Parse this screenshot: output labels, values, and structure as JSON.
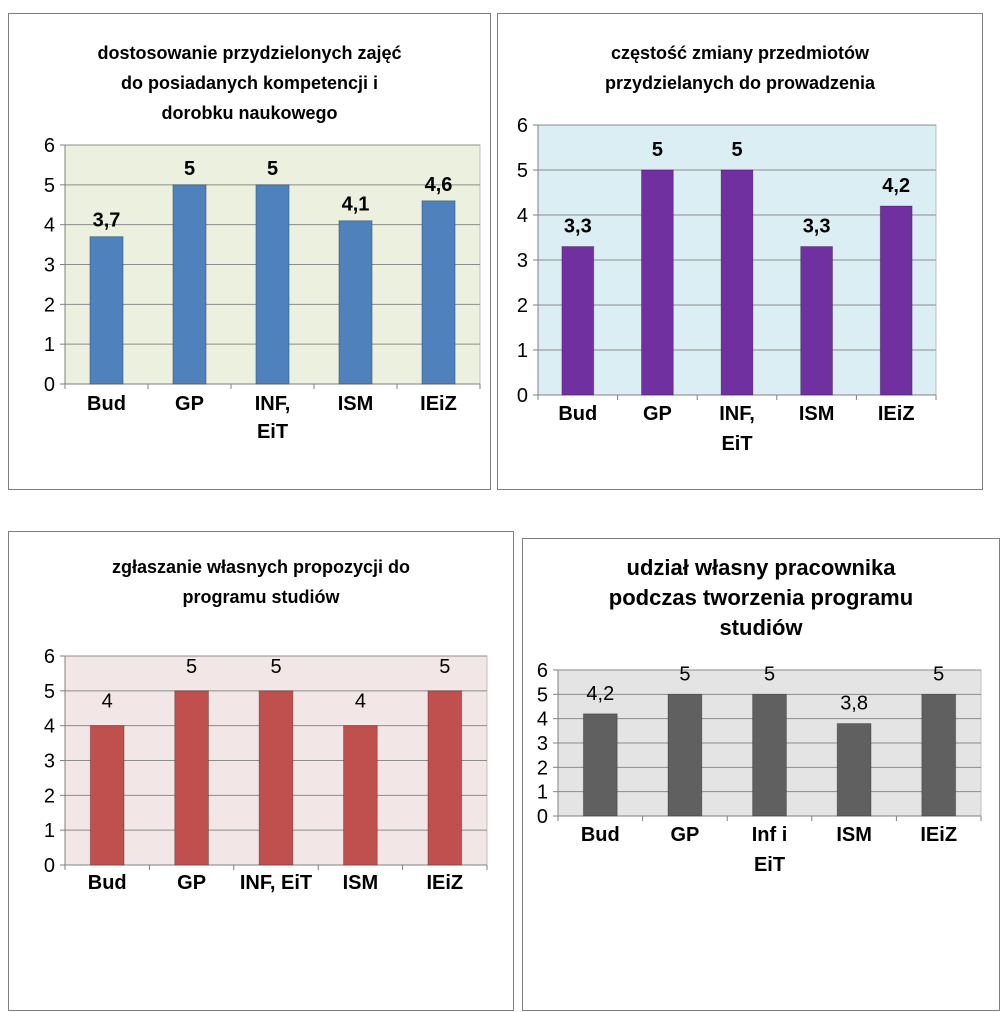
{
  "chart_data": [
    {
      "type": "bar",
      "title": "dostosowanie przydzielonych zajęć\ndo posiadanych kompetencji i\ndorobku naukowego",
      "categories": [
        "Bud",
        "GP",
        "INF,\nEiT",
        "ISM",
        "IEiZ"
      ],
      "values": [
        3.7,
        5,
        5,
        4.1,
        4.6
      ],
      "value_labels": [
        "3,7",
        "5",
        "5",
        "4,1",
        "4,6"
      ],
      "ylim": [
        0,
        6
      ],
      "yticks": [
        "0",
        "1",
        "2",
        "3",
        "4",
        "5",
        "6"
      ],
      "grid": true,
      "bar_color": "#4f81bd",
      "plot_bg": "#ebf1de",
      "xlabel": "",
      "ylabel": ""
    },
    {
      "type": "bar",
      "title": "częstość zmiany przedmiotów\nprzydzielanych do prowadzenia",
      "categories": [
        "Bud",
        "GP",
        "INF,\nEiT",
        "ISM",
        "IEiZ"
      ],
      "values": [
        3.3,
        5,
        5,
        3.3,
        4.2
      ],
      "value_labels": [
        "3,3",
        "5",
        "5",
        "3,3",
        "4,2"
      ],
      "ylim": [
        0,
        6
      ],
      "yticks": [
        "0",
        "1",
        "2",
        "3",
        "4",
        "5",
        "6"
      ],
      "grid": true,
      "bar_color": "#7030a0",
      "plot_bg": "#dbeef3",
      "xlabel": "",
      "ylabel": ""
    },
    {
      "type": "bar",
      "title": "zgłaszanie własnych propozycji do\nprogramu studiów",
      "categories": [
        "Bud",
        "GP",
        "INF, EiT",
        "ISM",
        "IEiZ"
      ],
      "values": [
        4,
        5,
        5,
        4,
        5
      ],
      "value_labels": [
        "4",
        "5",
        "5",
        "4",
        "5"
      ],
      "ylim": [
        0,
        6
      ],
      "yticks": [
        "0",
        "1",
        "2",
        "3",
        "4",
        "5",
        "6"
      ],
      "grid": true,
      "bar_color": "#c0504d",
      "plot_bg": "#f2e6e6",
      "xlabel": "",
      "ylabel": ""
    },
    {
      "type": "bar",
      "title": "udział własny pracownika\npodczas tworzenia programu\nstudiów",
      "categories": [
        "Bud",
        "GP",
        "Inf i\nEiT",
        "ISM",
        "IEiZ"
      ],
      "values": [
        4.2,
        5,
        5,
        3.8,
        5
      ],
      "value_labels": [
        "4,2",
        "5",
        "5",
        "3,8",
        "5"
      ],
      "ylim": [
        0,
        6
      ],
      "yticks": [
        "0",
        "1",
        "2",
        "3",
        "4",
        "5",
        "6"
      ],
      "grid": true,
      "bar_color": "#606060",
      "plot_bg": "#e4e4e4",
      "xlabel": "",
      "ylabel": ""
    }
  ]
}
